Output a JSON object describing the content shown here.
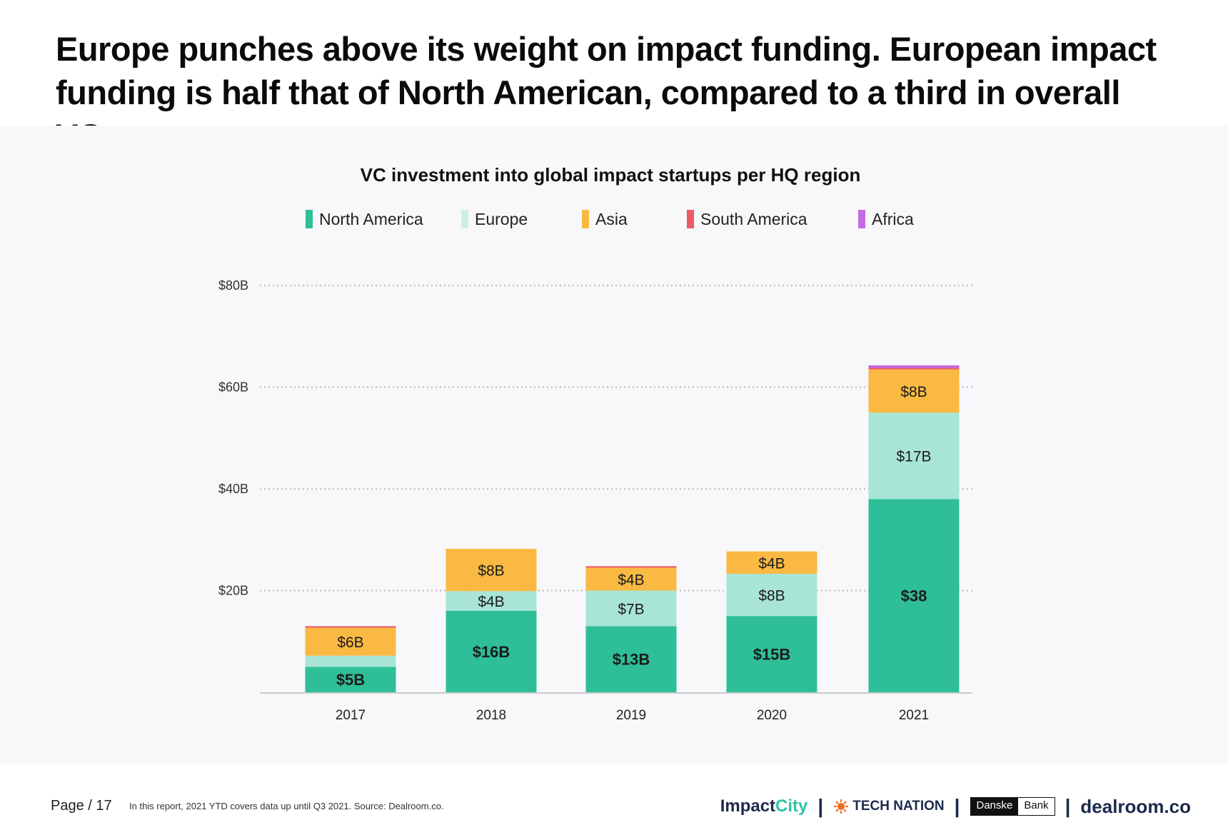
{
  "headline": "Europe punches above its weight on impact funding. European impact funding is half that of North American, compared to a third in overall VC.",
  "footer": {
    "page": "Page / 17",
    "note": "In this report, 2021 YTD covers data up until Q3 2021. Source: Dealroom.co."
  },
  "logos": {
    "impactcity_a": "Impact",
    "impactcity_b": "City",
    "technation": "TECH NATION",
    "danske_a": "Danske",
    "danske_b": "Bank",
    "dealroom": "dealroom.co",
    "separator": "|"
  },
  "colors": {
    "north_america": "#2ebf98",
    "europe": "#a8e5d5",
    "asia": "#f9b942",
    "south_america": "#ec5a68",
    "africa": "#c36be0"
  },
  "chart_data": {
    "type": "bar",
    "stacked": true,
    "title": "VC investment into global impact startups per HQ region",
    "xlabel": "",
    "ylabel": "",
    "categories": [
      "2017",
      "2018",
      "2019",
      "2020",
      "2021"
    ],
    "y_ticks": [
      20,
      40,
      60,
      80
    ],
    "y_tick_labels": [
      "$20B",
      "$40B",
      "$60B",
      "$80B"
    ],
    "ylim": [
      0,
      80
    ],
    "grid": "dotted horizontal",
    "legend_position": "top",
    "series": [
      {
        "name": "North America",
        "color": "#2ebf98",
        "values": [
          5,
          16,
          13,
          15,
          38
        ],
        "labels": [
          "$5B",
          "$16B",
          "$13B",
          "$15B",
          "$38"
        ],
        "bold": true
      },
      {
        "name": "Europe",
        "color": "#a8e5d5",
        "values": [
          2.2,
          3.9,
          7,
          8.3,
          17
        ],
        "labels": [
          "",
          "$4B",
          "$7B",
          "$8B",
          "$17B"
        ],
        "bold": false
      },
      {
        "name": "Asia",
        "color": "#f9b942",
        "values": [
          5.5,
          8.3,
          4.5,
          4.4,
          8.5
        ],
        "labels": [
          "$6B",
          "$8B",
          "$4B",
          "$4B",
          "$8B"
        ],
        "bold": false
      },
      {
        "name": "South America",
        "color": "#ec5a68",
        "values": [
          0.3,
          0,
          0.3,
          0,
          0.3
        ],
        "labels": [
          "",
          "",
          "",
          "",
          ""
        ],
        "bold": false
      },
      {
        "name": "Africa",
        "color": "#c36be0",
        "values": [
          0,
          0,
          0,
          0,
          0.5
        ],
        "labels": [
          "",
          "",
          "",
          "",
          ""
        ],
        "bold": false
      }
    ]
  }
}
